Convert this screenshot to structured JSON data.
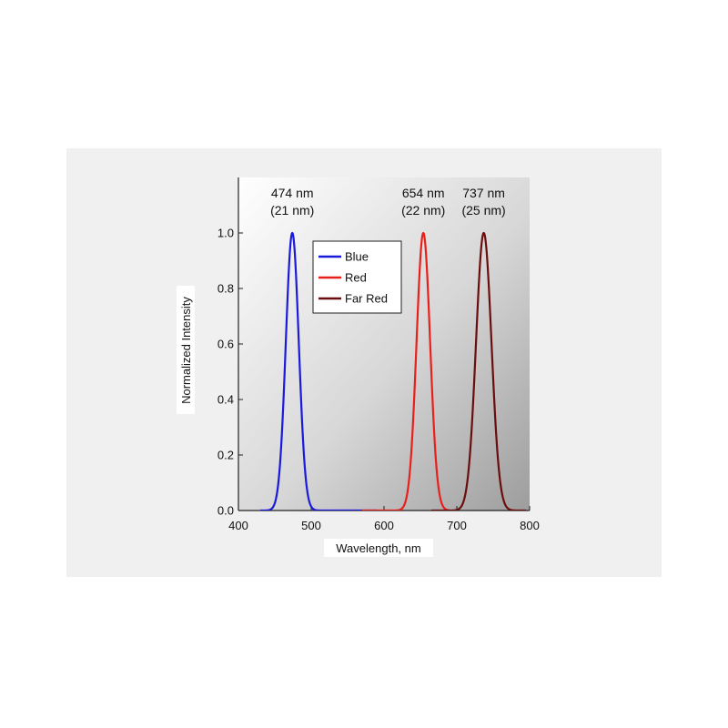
{
  "chart_data": {
    "type": "line",
    "xlabel": "Wavelength, nm",
    "ylabel": "Normalized Intensity",
    "xlim": [
      400,
      800
    ],
    "ylim": [
      0,
      1.2
    ],
    "xticks": [
      400,
      500,
      600,
      700,
      800
    ],
    "yticks": [
      "0.0",
      "0.2",
      "0.4",
      "0.6",
      "0.8",
      "1.0"
    ],
    "legend_position": "top-center",
    "series": [
      {
        "name": "Blue",
        "color": "#1a1adb",
        "peak": 474,
        "fwhm": 21,
        "x_range": [
          430,
          590
        ],
        "peak_label": [
          "474 nm",
          "(21 nm)"
        ]
      },
      {
        "name": "Red",
        "color": "#e8201c",
        "peak": 654,
        "fwhm": 22,
        "x_range": [
          570,
          690
        ],
        "peak_label": [
          "654 nm",
          "(22 nm)"
        ]
      },
      {
        "name": "Far Red",
        "color": "#6b0d0d",
        "peak": 737,
        "fwhm": 25,
        "x_range": [
          665,
          795
        ],
        "peak_label": [
          "737 nm",
          "(25 nm)"
        ]
      }
    ]
  }
}
